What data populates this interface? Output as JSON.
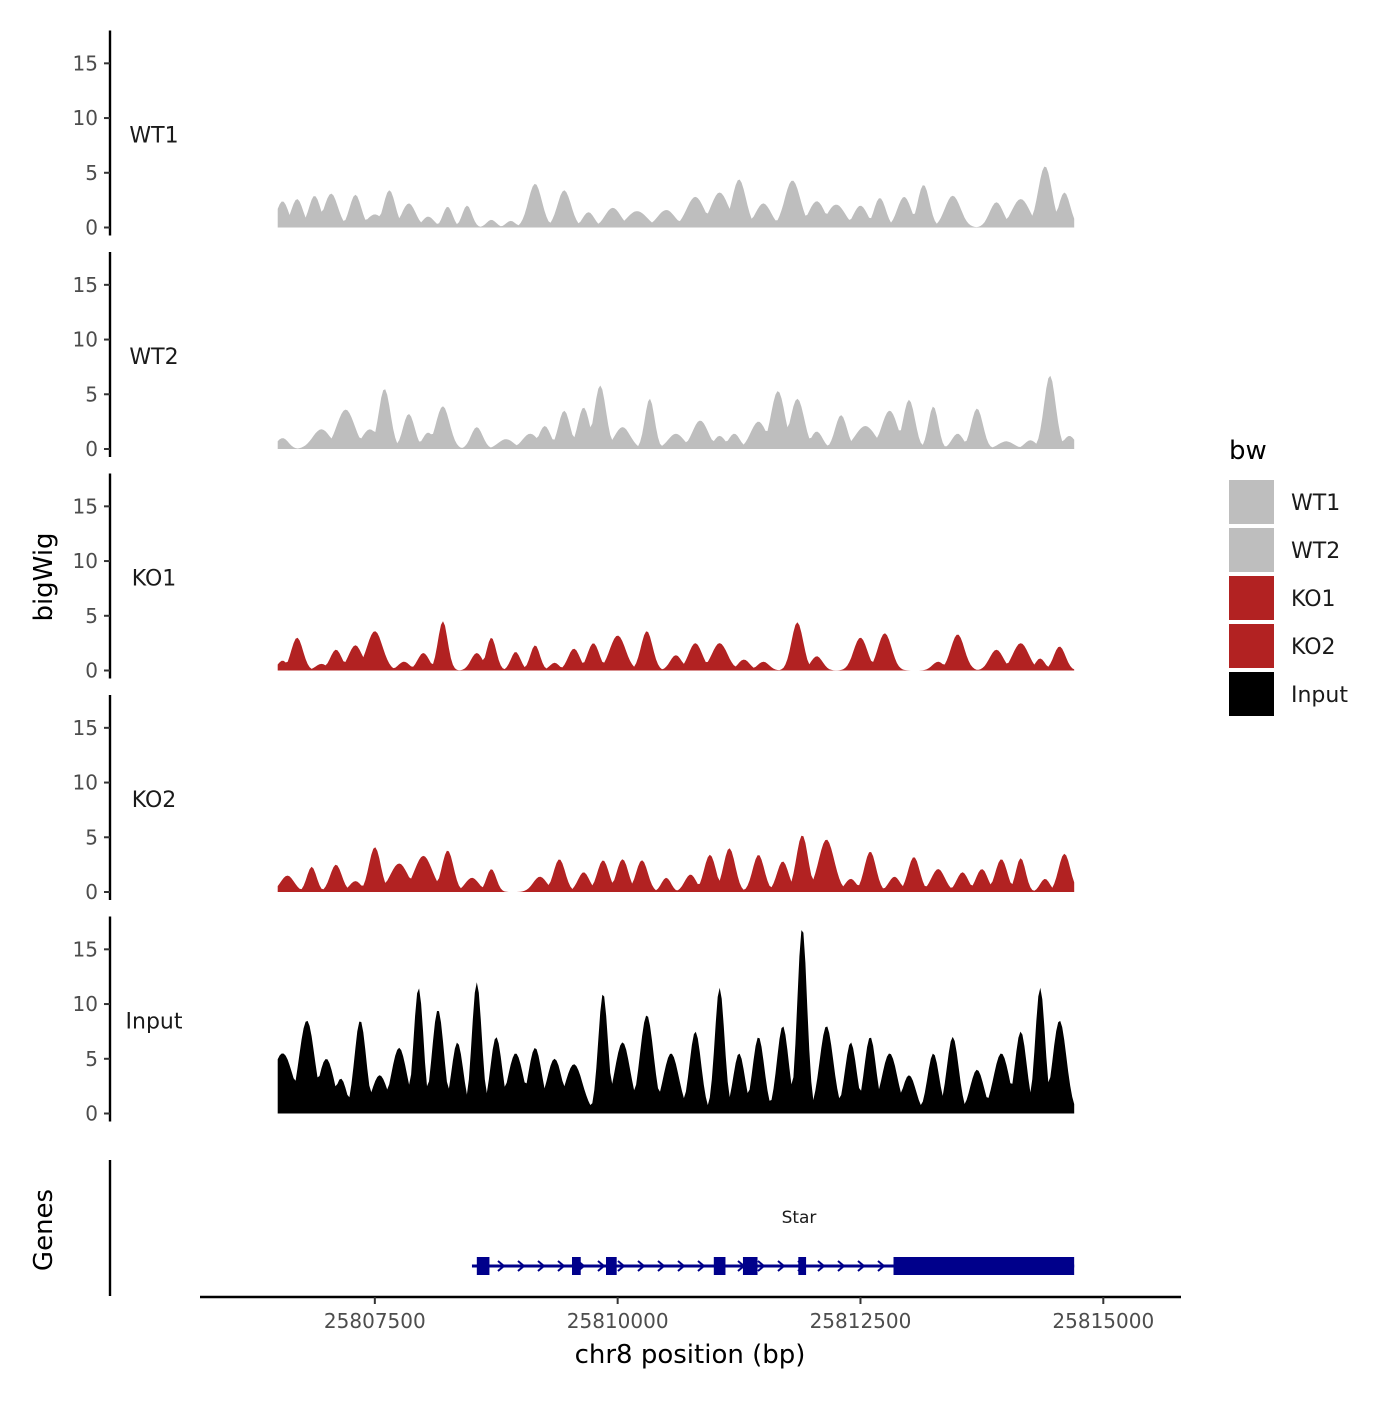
{
  "chart_data": {
    "type": "area",
    "x_range": [
      25806500,
      25814700
    ],
    "x_domain": [
      25805700,
      25815800
    ],
    "y_domain": [
      0,
      18
    ],
    "y_ticks": [
      0,
      5,
      10,
      15
    ],
    "x_ticks": [
      25807500,
      25810000,
      25812500,
      25815000
    ],
    "xlabel": "chr8 position (bp)",
    "ylabel": "bigWig",
    "legend": {
      "title": "bw",
      "position": "right",
      "entries": [
        {
          "label": "WT1",
          "color": "#bebebe"
        },
        {
          "label": "WT2",
          "color": "#bebebe"
        },
        {
          "label": "KO1",
          "color": "#b22222"
        },
        {
          "label": "KO2",
          "color": "#b22222"
        },
        {
          "label": "Input",
          "color": "#000000"
        }
      ]
    },
    "series": [
      {
        "name": "WT1",
        "color": "#bebebe",
        "peaks": [
          [
            25806550,
            2.4,
            60
          ],
          [
            25806700,
            2.6,
            60
          ],
          [
            25806880,
            2.9,
            60
          ],
          [
            25807050,
            3.1,
            70
          ],
          [
            25807300,
            3.0,
            60
          ],
          [
            25807500,
            1.2,
            80
          ],
          [
            25807650,
            3.4,
            60
          ],
          [
            25807850,
            2.2,
            70
          ],
          [
            25808050,
            1.0,
            60
          ],
          [
            25808250,
            1.9,
            50
          ],
          [
            25808450,
            2.0,
            50
          ],
          [
            25808700,
            0.7,
            50
          ],
          [
            25808900,
            0.6,
            50
          ],
          [
            25809150,
            4.0,
            70
          ],
          [
            25809450,
            3.4,
            70
          ],
          [
            25809700,
            1.4,
            60
          ],
          [
            25809950,
            1.8,
            80
          ],
          [
            25810200,
            1.5,
            100
          ],
          [
            25810500,
            1.6,
            90
          ],
          [
            25810800,
            2.8,
            90
          ],
          [
            25811050,
            3.2,
            90
          ],
          [
            25811250,
            4.4,
            70
          ],
          [
            25811500,
            2.2,
            80
          ],
          [
            25811800,
            4.3,
            80
          ],
          [
            25812050,
            2.4,
            80
          ],
          [
            25812250,
            2.1,
            90
          ],
          [
            25812500,
            2.0,
            70
          ],
          [
            25812700,
            2.7,
            60
          ],
          [
            25812950,
            2.8,
            70
          ],
          [
            25813150,
            3.9,
            60
          ],
          [
            25813450,
            2.9,
            80
          ],
          [
            25813900,
            2.3,
            70
          ],
          [
            25814150,
            2.6,
            90
          ],
          [
            25814400,
            5.6,
            70
          ],
          [
            25814600,
            3.2,
            60
          ]
        ]
      },
      {
        "name": "WT2",
        "color": "#bebebe",
        "peaks": [
          [
            25806550,
            1.0,
            60
          ],
          [
            25806950,
            1.8,
            90
          ],
          [
            25807200,
            3.6,
            90
          ],
          [
            25807450,
            1.8,
            80
          ],
          [
            25807600,
            5.5,
            60
          ],
          [
            25807850,
            3.2,
            60
          ],
          [
            25808050,
            1.5,
            60
          ],
          [
            25808200,
            3.9,
            70
          ],
          [
            25808550,
            2.0,
            60
          ],
          [
            25808850,
            0.9,
            80
          ],
          [
            25809100,
            1.4,
            80
          ],
          [
            25809250,
            2.1,
            60
          ],
          [
            25809450,
            3.5,
            60
          ],
          [
            25809650,
            3.8,
            60
          ],
          [
            25809820,
            5.8,
            60
          ],
          [
            25810050,
            2.0,
            80
          ],
          [
            25810330,
            4.6,
            50
          ],
          [
            25810600,
            1.4,
            80
          ],
          [
            25810850,
            2.6,
            80
          ],
          [
            25811050,
            1.2,
            60
          ],
          [
            25811200,
            1.4,
            60
          ],
          [
            25811450,
            2.5,
            80
          ],
          [
            25811650,
            5.3,
            70
          ],
          [
            25811850,
            4.6,
            70
          ],
          [
            25812050,
            1.6,
            60
          ],
          [
            25812300,
            3.1,
            60
          ],
          [
            25812550,
            2.1,
            100
          ],
          [
            25812800,
            3.5,
            80
          ],
          [
            25813000,
            4.5,
            60
          ],
          [
            25813250,
            3.9,
            50
          ],
          [
            25813500,
            1.4,
            60
          ],
          [
            25813700,
            3.7,
            60
          ],
          [
            25814000,
            0.7,
            80
          ],
          [
            25814250,
            0.8,
            60
          ],
          [
            25814450,
            6.7,
            60
          ],
          [
            25814650,
            1.2,
            60
          ]
        ]
      },
      {
        "name": "KO1",
        "color": "#b22222",
        "peaks": [
          [
            25806550,
            0.9,
            50
          ],
          [
            25806700,
            3.0,
            60
          ],
          [
            25806950,
            0.6,
            60
          ],
          [
            25807100,
            1.9,
            60
          ],
          [
            25807300,
            2.3,
            70
          ],
          [
            25807500,
            3.6,
            80
          ],
          [
            25807800,
            0.8,
            60
          ],
          [
            25808000,
            1.6,
            60
          ],
          [
            25808200,
            4.5,
            50
          ],
          [
            25808550,
            1.6,
            60
          ],
          [
            25808700,
            3.0,
            50
          ],
          [
            25808950,
            1.7,
            50
          ],
          [
            25809150,
            2.3,
            50
          ],
          [
            25809350,
            0.7,
            50
          ],
          [
            25809550,
            2.0,
            60
          ],
          [
            25809750,
            2.5,
            60
          ],
          [
            25810000,
            3.2,
            80
          ],
          [
            25810300,
            3.6,
            60
          ],
          [
            25810600,
            1.4,
            60
          ],
          [
            25810800,
            2.5,
            70
          ],
          [
            25811050,
            2.5,
            80
          ],
          [
            25811300,
            1.0,
            60
          ],
          [
            25811500,
            0.8,
            60
          ],
          [
            25811850,
            4.4,
            60
          ],
          [
            25812050,
            1.3,
            60
          ],
          [
            25812500,
            3.0,
            70
          ],
          [
            25812750,
            3.4,
            70
          ],
          [
            25813300,
            0.8,
            60
          ],
          [
            25813500,
            3.3,
            70
          ],
          [
            25813900,
            1.9,
            70
          ],
          [
            25814150,
            2.5,
            80
          ],
          [
            25814350,
            1.1,
            50
          ],
          [
            25814550,
            2.2,
            60
          ]
        ]
      },
      {
        "name": "KO2",
        "color": "#b22222",
        "peaks": [
          [
            25806600,
            1.5,
            70
          ],
          [
            25806850,
            2.3,
            50
          ],
          [
            25807100,
            2.5,
            60
          ],
          [
            25807300,
            1.0,
            60
          ],
          [
            25807500,
            4.1,
            60
          ],
          [
            25807750,
            2.6,
            90
          ],
          [
            25808000,
            3.3,
            90
          ],
          [
            25808250,
            3.8,
            60
          ],
          [
            25808500,
            1.3,
            70
          ],
          [
            25808700,
            2.1,
            50
          ],
          [
            25809200,
            1.4,
            70
          ],
          [
            25809400,
            3.0,
            60
          ],
          [
            25809650,
            1.8,
            60
          ],
          [
            25809850,
            2.9,
            60
          ],
          [
            25810050,
            3.0,
            60
          ],
          [
            25810250,
            2.9,
            60
          ],
          [
            25810500,
            1.3,
            50
          ],
          [
            25810750,
            1.6,
            60
          ],
          [
            25810950,
            3.4,
            60
          ],
          [
            25811150,
            4.0,
            60
          ],
          [
            25811450,
            3.4,
            60
          ],
          [
            25811700,
            2.8,
            60
          ],
          [
            25811900,
            5.2,
            60
          ],
          [
            25812150,
            4.8,
            80
          ],
          [
            25812400,
            1.2,
            60
          ],
          [
            25812600,
            3.7,
            60
          ],
          [
            25812850,
            1.4,
            60
          ],
          [
            25813050,
            3.2,
            60
          ],
          [
            25813300,
            2.1,
            70
          ],
          [
            25813550,
            1.8,
            60
          ],
          [
            25813750,
            2.1,
            60
          ],
          [
            25813950,
            3.0,
            60
          ],
          [
            25814150,
            3.1,
            50
          ],
          [
            25814400,
            1.2,
            50
          ],
          [
            25814600,
            3.5,
            60
          ]
        ]
      },
      {
        "name": "Input",
        "color": "#000000",
        "peaks": [
          [
            25806550,
            5.5,
            110
          ],
          [
            25806800,
            8.5,
            80
          ],
          [
            25807000,
            5.0,
            80
          ],
          [
            25807150,
            3.2,
            60
          ],
          [
            25807350,
            8.5,
            60
          ],
          [
            25807550,
            3.5,
            80
          ],
          [
            25807750,
            6.0,
            80
          ],
          [
            25807950,
            11.5,
            50
          ],
          [
            25808150,
            9.5,
            60
          ],
          [
            25808350,
            6.5,
            60
          ],
          [
            25808550,
            12.0,
            50
          ],
          [
            25808750,
            7.0,
            60
          ],
          [
            25808950,
            5.5,
            80
          ],
          [
            25809150,
            6.0,
            70
          ],
          [
            25809350,
            5.0,
            80
          ],
          [
            25809550,
            4.5,
            90
          ],
          [
            25809850,
            11.0,
            50
          ],
          [
            25810050,
            6.5,
            80
          ],
          [
            25810300,
            9.0,
            70
          ],
          [
            25810550,
            5.5,
            80
          ],
          [
            25810800,
            7.5,
            60
          ],
          [
            25811050,
            11.5,
            50
          ],
          [
            25811250,
            5.5,
            60
          ],
          [
            25811450,
            7.0,
            60
          ],
          [
            25811700,
            8.0,
            60
          ],
          [
            25811900,
            17.0,
            50
          ],
          [
            25812150,
            8.0,
            70
          ],
          [
            25812400,
            6.5,
            60
          ],
          [
            25812600,
            7.0,
            60
          ],
          [
            25812800,
            5.5,
            80
          ],
          [
            25813000,
            3.5,
            70
          ],
          [
            25813250,
            5.5,
            60
          ],
          [
            25813450,
            7.0,
            60
          ],
          [
            25813700,
            4.0,
            70
          ],
          [
            25813950,
            5.5,
            80
          ],
          [
            25814150,
            7.5,
            60
          ],
          [
            25814350,
            11.5,
            50
          ],
          [
            25814550,
            8.5,
            70
          ]
        ]
      }
    ],
    "genes": [
      {
        "name": "Star",
        "start": 25808500,
        "end": 25814700,
        "strand": "+",
        "color": "#00008b",
        "exons": [
          [
            25808550,
            25808680
          ],
          [
            25809530,
            25809620
          ],
          [
            25809880,
            25809990
          ],
          [
            25810990,
            25811110
          ],
          [
            25811290,
            25811440
          ],
          [
            25811860,
            25811940
          ],
          [
            25812840,
            25814700
          ]
        ]
      }
    ],
    "genes_track_label": "Genes"
  }
}
